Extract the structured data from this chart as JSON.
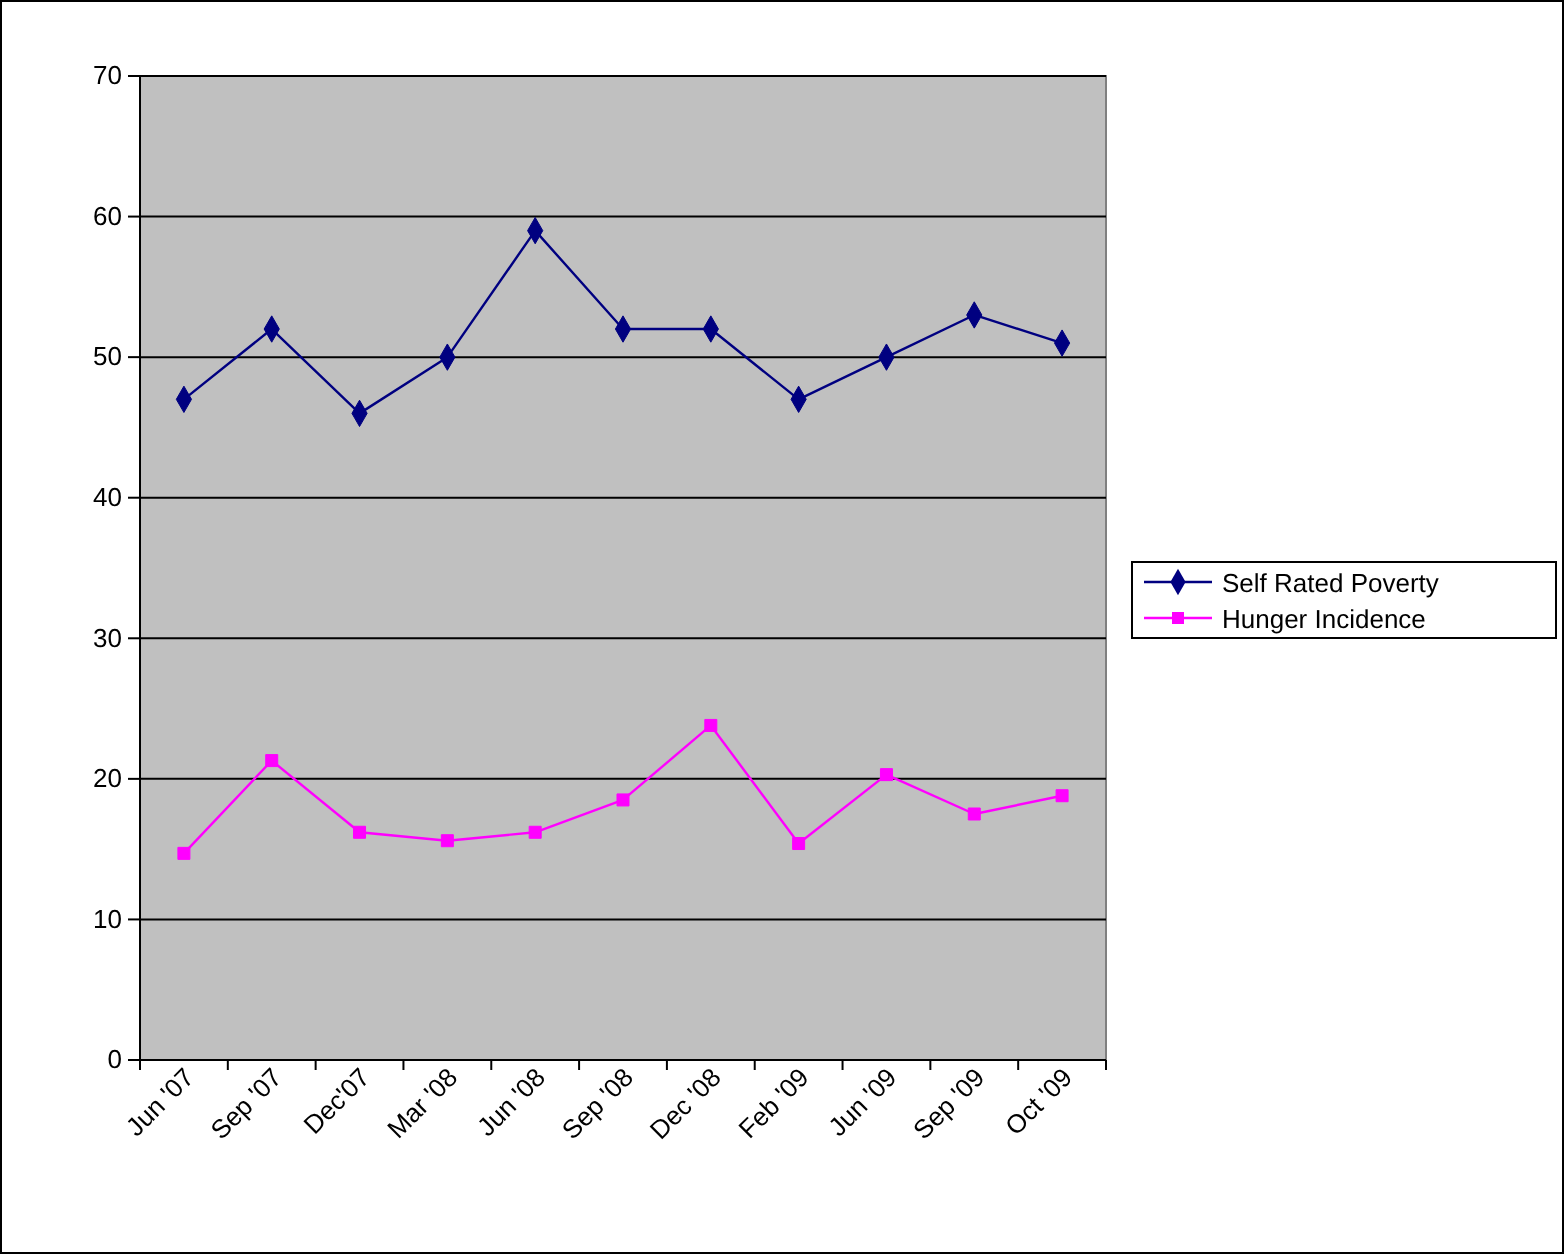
{
  "chart_data": {
    "type": "line",
    "categories": [
      "Jun '07",
      "Sep '07",
      "Dec'07",
      "Mar '08",
      "Jun '08",
      "Sep '08",
      "Dec '08",
      "Feb '09",
      "Jun '09",
      "Sep '09",
      "Oct '09"
    ],
    "series": [
      {
        "name": "Self Rated Poverty",
        "color": "#000080",
        "marker": "diamond",
        "values": [
          47,
          52,
          46,
          50,
          59,
          52,
          52,
          47,
          50,
          53,
          51
        ]
      },
      {
        "name": "Hunger Incidence",
        "color": "#ff00ff",
        "marker": "square",
        "values": [
          14.7,
          21.3,
          16.2,
          15.6,
          16.2,
          18.5,
          23.8,
          15.4,
          20.3,
          17.5,
          18.8
        ]
      }
    ],
    "ylim": [
      0,
      70
    ],
    "yticks": [
      0,
      10,
      20,
      30,
      40,
      50,
      60,
      70
    ],
    "grid": "y",
    "legend": "right"
  }
}
